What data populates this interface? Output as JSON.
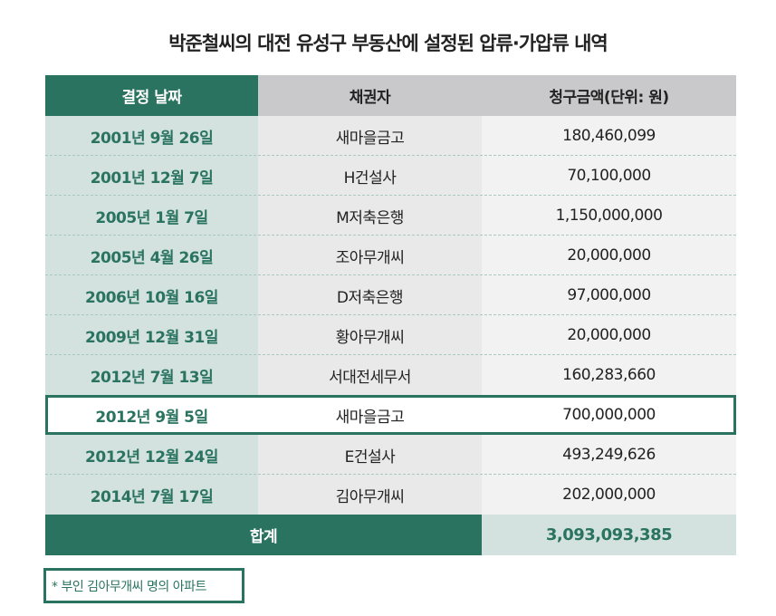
{
  "title": "박준철씨의 대전 유성구 부동산에 설정된 압류·가압류 내역",
  "headers": [
    "결정 날짜",
    "채권자",
    "청구금액(단위: 원)"
  ],
  "rows": [
    {
      "date": "2001년 9월 26일",
      "creditor": "새마을금고",
      "amount": "180,460,099"
    },
    {
      "date": "2001년 12월 7일",
      "creditor": "H건설사",
      "amount": "70,100,000"
    },
    {
      "date": "2005년 1월 7일",
      "creditor": "M저축은행",
      "amount": "1,150,000,000"
    },
    {
      "date": "2005년 4월 26일",
      "creditor": "조아무개씨",
      "amount": "20,000,000"
    },
    {
      "date": "2006년 10월 16일",
      "creditor": "D저축은행",
      "amount": "97,000,000"
    },
    {
      "date": "2009년 12월 31일",
      "creditor": "황아무개씨",
      "amount": "20,000,000"
    },
    {
      "date": "2012년 7월 13일",
      "creditor": "서대전세무서",
      "amount": "160,283,660"
    },
    {
      "date": "2012년 9월 5일",
      "creditor": "새마을금고",
      "amount": "700,000,000",
      "highlighted": true
    },
    {
      "date": "2012년 12월 24일",
      "creditor": "E건설사",
      "amount": "493,249,626"
    },
    {
      "date": "2014년 7월 17일",
      "creditor": "김아무개씨",
      "amount": "202,000,000"
    }
  ],
  "total": {
    "label": "합계",
    "amount": "3,093,093,385"
  },
  "note": "* 부인 김아무개씨 명의 아파트",
  "colors": {
    "accent": "#2a7360",
    "light_accent": "#d3e2de"
  }
}
